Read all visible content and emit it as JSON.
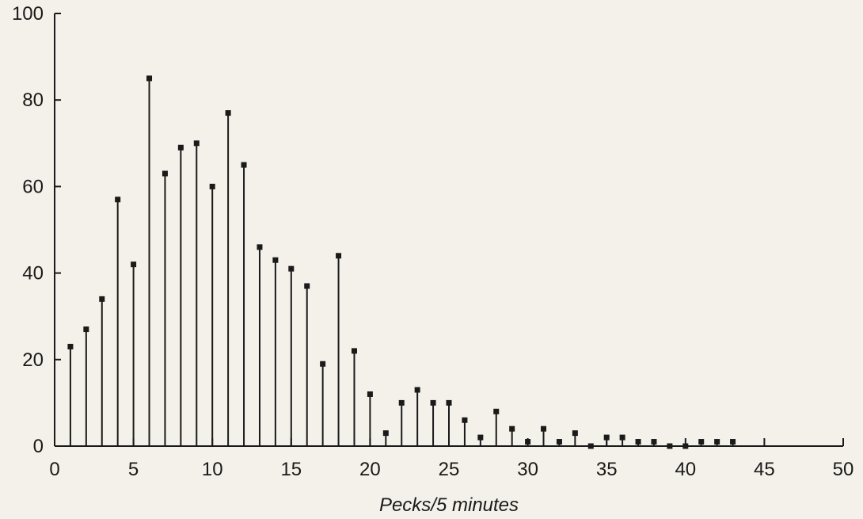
{
  "chart_data": {
    "type": "bar",
    "subtype": "stem",
    "title": "",
    "xlabel": "Pecks/5 minutes",
    "ylabel": "",
    "xlim": [
      0,
      50
    ],
    "ylim": [
      0,
      100
    ],
    "x_ticks": [
      0,
      5,
      10,
      15,
      20,
      25,
      30,
      35,
      40,
      45,
      50
    ],
    "y_ticks": [
      0,
      20,
      40,
      60,
      80,
      100
    ],
    "grid": false,
    "x": [
      1,
      2,
      3,
      4,
      5,
      6,
      7,
      8,
      9,
      10,
      11,
      12,
      13,
      14,
      15,
      16,
      17,
      18,
      19,
      20,
      21,
      22,
      23,
      24,
      25,
      26,
      27,
      28,
      29,
      30,
      31,
      32,
      33,
      34,
      35,
      36,
      37,
      38,
      39,
      40,
      41,
      42,
      43
    ],
    "values": [
      23,
      27,
      34,
      57,
      42,
      85,
      63,
      69,
      70,
      60,
      77,
      65,
      46,
      43,
      41,
      37,
      19,
      44,
      22,
      12,
      3,
      10,
      13,
      10,
      10,
      6,
      2,
      8,
      4,
      1,
      4,
      1,
      3,
      0,
      2,
      2,
      1,
      1,
      0,
      0,
      1,
      1,
      1
    ],
    "colors": {
      "background": "#f3f1e9",
      "ink": "#1a1a1a"
    }
  }
}
